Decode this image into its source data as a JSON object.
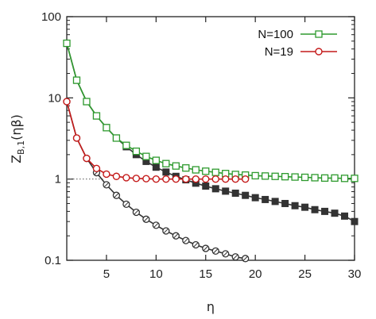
{
  "chart_data": {
    "type": "line",
    "xlabel": "η",
    "ylabel_main": "Z",
    "ylabel_sub": "B,1",
    "ylabel_rest": "(ηβ)",
    "yscale": "log",
    "xlim": [
      1,
      30
    ],
    "ylim": [
      0.1,
      100
    ],
    "grid": false,
    "legend_position": "top-right",
    "x_ticks": [
      5,
      10,
      15,
      20,
      25,
      30
    ],
    "x_tick_labels": [
      "5",
      "10",
      "15",
      "20",
      "25",
      "30"
    ],
    "y_ticks": [
      0.1,
      1,
      10,
      100
    ],
    "y_tick_labels": [
      "0.1",
      "1",
      "10",
      "100"
    ],
    "reference_line": {
      "y": 1,
      "x_to": 4.8,
      "style": "dotted"
    },
    "series": [
      {
        "name": "N=100",
        "legend": true,
        "color": "#2e9a2e",
        "marker": "square-open",
        "x": [
          1,
          2,
          3,
          4,
          5,
          6,
          7,
          8,
          9,
          10,
          11,
          12,
          13,
          14,
          15,
          16,
          17,
          18,
          19,
          20,
          21,
          22,
          23,
          24,
          25,
          26,
          27,
          28,
          29,
          30
        ],
        "y": [
          47,
          16.5,
          9,
          6,
          4.3,
          3.2,
          2.6,
          2.2,
          1.9,
          1.7,
          1.55,
          1.45,
          1.37,
          1.3,
          1.25,
          1.21,
          1.17,
          1.14,
          1.12,
          1.1,
          1.09,
          1.08,
          1.07,
          1.06,
          1.05,
          1.04,
          1.03,
          1.03,
          1.02,
          1.02
        ]
      },
      {
        "name": "N=19",
        "legend": true,
        "color": "#c41a1a",
        "marker": "circle-open",
        "x": [
          1,
          2,
          3,
          4,
          5,
          6,
          7,
          8,
          9,
          10,
          11,
          12,
          13,
          14,
          15,
          16,
          17,
          18,
          19
        ],
        "y": [
          9,
          3.2,
          1.8,
          1.35,
          1.15,
          1.08,
          1.04,
          1.02,
          1.01,
          1.0,
          1.0,
          1.0,
          1.0,
          1.0,
          1.0,
          1.0,
          1.0,
          1.0,
          1.0
        ]
      },
      {
        "name": "",
        "legend": false,
        "color": "#333333",
        "marker": "square-filled",
        "x": [
          1,
          2,
          3,
          4,
          5,
          6,
          7,
          8,
          9,
          10,
          11,
          12,
          13,
          14,
          15,
          16,
          17,
          18,
          19,
          20,
          21,
          22,
          23,
          24,
          25,
          26,
          27,
          28,
          29,
          30
        ],
        "y": [
          47,
          16.5,
          9,
          6,
          4.3,
          3.2,
          2.5,
          2.0,
          1.65,
          1.4,
          1.22,
          1.08,
          0.98,
          0.89,
          0.82,
          0.76,
          0.71,
          0.67,
          0.63,
          0.59,
          0.56,
          0.53,
          0.5,
          0.47,
          0.45,
          0.42,
          0.4,
          0.38,
          0.35,
          0.3
        ]
      },
      {
        "name": "",
        "legend": false,
        "color": "#333333",
        "marker": "circle-hatched",
        "x": [
          1,
          2,
          3,
          4,
          5,
          6,
          7,
          8,
          9,
          10,
          11,
          12,
          13,
          14,
          15,
          16,
          17,
          18,
          19
        ],
        "y": [
          9,
          3.2,
          1.8,
          1.2,
          0.85,
          0.63,
          0.49,
          0.39,
          0.32,
          0.27,
          0.23,
          0.2,
          0.175,
          0.155,
          0.14,
          0.13,
          0.12,
          0.11,
          0.105
        ]
      }
    ]
  }
}
